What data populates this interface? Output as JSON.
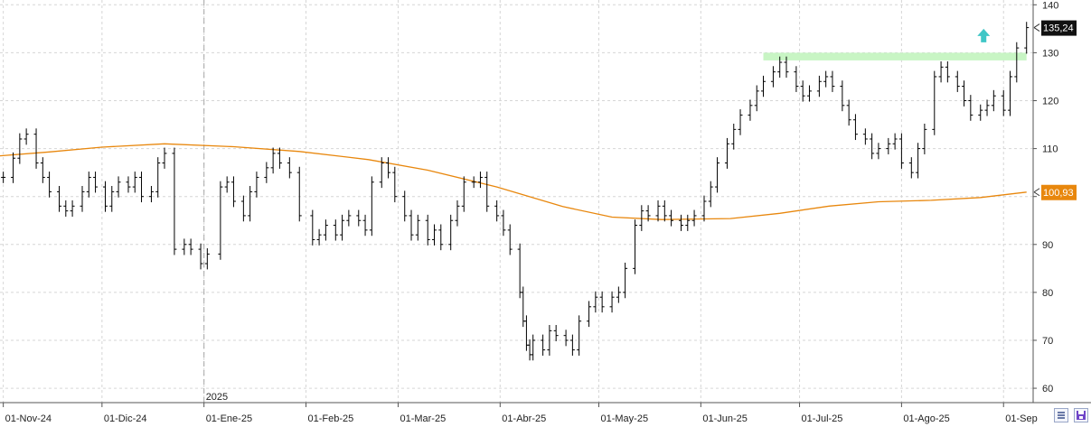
{
  "chart_data": {
    "type": "ohlc",
    "grid": true,
    "ylim": [
      57,
      141
    ],
    "y_ticks": [
      60,
      70,
      80,
      90,
      100,
      110,
      120,
      130,
      140
    ],
    "x_ticks": [
      {
        "date": "2024-11-01",
        "label": "01-Nov-24"
      },
      {
        "date": "2024-12-01",
        "label": "01-Dic-24"
      },
      {
        "date": "2025-01-01",
        "label": "01-Ene-25"
      },
      {
        "date": "2025-02-01",
        "label": "01-Feb-25"
      },
      {
        "date": "2025-03-01",
        "label": "01-Mar-25"
      },
      {
        "date": "2025-04-01",
        "label": "01-Abr-25"
      },
      {
        "date": "2025-05-01",
        "label": "01-May-25"
      },
      {
        "date": "2025-06-01",
        "label": "01-Jun-25"
      },
      {
        "date": "2025-07-01",
        "label": "01-Jul-25"
      },
      {
        "date": "2025-08-01",
        "label": "01-Ago-25"
      },
      {
        "date": "2025-09-01",
        "label": "01-Sep"
      }
    ],
    "year_marker": {
      "date": "2025-01-01",
      "label": "2025"
    },
    "price_series": {
      "color": "#000000",
      "points": [
        {
          "d": "2024-11-01",
          "v": 104
        },
        {
          "d": "2024-11-04",
          "v": 108
        },
        {
          "d": "2024-11-06",
          "v": 112
        },
        {
          "d": "2024-11-08",
          "v": 113
        },
        {
          "d": "2024-11-11",
          "v": 107
        },
        {
          "d": "2024-11-13",
          "v": 104
        },
        {
          "d": "2024-11-15",
          "v": 101
        },
        {
          "d": "2024-11-18",
          "v": 98
        },
        {
          "d": "2024-11-20",
          "v": 97
        },
        {
          "d": "2024-11-22",
          "v": 98
        },
        {
          "d": "2024-11-25",
          "v": 101
        },
        {
          "d": "2024-11-27",
          "v": 104
        },
        {
          "d": "2024-11-29",
          "v": 102
        },
        {
          "d": "2024-12-02",
          "v": 98
        },
        {
          "d": "2024-12-04",
          "v": 101
        },
        {
          "d": "2024-12-06",
          "v": 103
        },
        {
          "d": "2024-12-09",
          "v": 102
        },
        {
          "d": "2024-12-11",
          "v": 104
        },
        {
          "d": "2024-12-13",
          "v": 100
        },
        {
          "d": "2024-12-16",
          "v": 101
        },
        {
          "d": "2024-12-18",
          "v": 107
        },
        {
          "d": "2024-12-20",
          "v": 109
        },
        {
          "d": "2024-12-23",
          "v": 89
        },
        {
          "d": "2024-12-26",
          "v": 90
        },
        {
          "d": "2024-12-28",
          "v": 89
        },
        {
          "d": "2024-12-31",
          "v": 86
        },
        {
          "d": "2025-01-02",
          "v": 88
        },
        {
          "d": "2025-01-06",
          "v": 102
        },
        {
          "d": "2025-01-08",
          "v": 103
        },
        {
          "d": "2025-01-10",
          "v": 99
        },
        {
          "d": "2025-01-13",
          "v": 96
        },
        {
          "d": "2025-01-15",
          "v": 101
        },
        {
          "d": "2025-01-17",
          "v": 104
        },
        {
          "d": "2025-01-20",
          "v": 106
        },
        {
          "d": "2025-01-22",
          "v": 109
        },
        {
          "d": "2025-01-24",
          "v": 107
        },
        {
          "d": "2025-01-27",
          "v": 105
        },
        {
          "d": "2025-01-30",
          "v": 96
        },
        {
          "d": "2025-02-03",
          "v": 91
        },
        {
          "d": "2025-02-05",
          "v": 92
        },
        {
          "d": "2025-02-07",
          "v": 94
        },
        {
          "d": "2025-02-10",
          "v": 92
        },
        {
          "d": "2025-02-12",
          "v": 95
        },
        {
          "d": "2025-02-14",
          "v": 96
        },
        {
          "d": "2025-02-17",
          "v": 95
        },
        {
          "d": "2025-02-19",
          "v": 93
        },
        {
          "d": "2025-02-21",
          "v": 103
        },
        {
          "d": "2025-02-24",
          "v": 107
        },
        {
          "d": "2025-02-26",
          "v": 105
        },
        {
          "d": "2025-02-28",
          "v": 100
        },
        {
          "d": "2025-03-03",
          "v": 96
        },
        {
          "d": "2025-03-05",
          "v": 92
        },
        {
          "d": "2025-03-07",
          "v": 95
        },
        {
          "d": "2025-03-10",
          "v": 91
        },
        {
          "d": "2025-03-12",
          "v": 93
        },
        {
          "d": "2025-03-14",
          "v": 90
        },
        {
          "d": "2025-03-17",
          "v": 95
        },
        {
          "d": "2025-03-19",
          "v": 98
        },
        {
          "d": "2025-03-21",
          "v": 103
        },
        {
          "d": "2025-03-24",
          "v": 103
        },
        {
          "d": "2025-03-26",
          "v": 104
        },
        {
          "d": "2025-03-28",
          "v": 98
        },
        {
          "d": "2025-03-31",
          "v": 96
        },
        {
          "d": "2025-04-02",
          "v": 93
        },
        {
          "d": "2025-04-04",
          "v": 89
        },
        {
          "d": "2025-04-07",
          "v": 80
        },
        {
          "d": "2025-04-08",
          "v": 74
        },
        {
          "d": "2025-04-09",
          "v": 69
        },
        {
          "d": "2025-04-10",
          "v": 67
        },
        {
          "d": "2025-04-11",
          "v": 70
        },
        {
          "d": "2025-04-14",
          "v": 68
        },
        {
          "d": "2025-04-16",
          "v": 72
        },
        {
          "d": "2025-04-18",
          "v": 71
        },
        {
          "d": "2025-04-21",
          "v": 70
        },
        {
          "d": "2025-04-23",
          "v": 68
        },
        {
          "d": "2025-04-25",
          "v": 74
        },
        {
          "d": "2025-04-28",
          "v": 77
        },
        {
          "d": "2025-04-30",
          "v": 79
        },
        {
          "d": "2025-05-02",
          "v": 77
        },
        {
          "d": "2025-05-05",
          "v": 79
        },
        {
          "d": "2025-05-07",
          "v": 80
        },
        {
          "d": "2025-05-09",
          "v": 85
        },
        {
          "d": "2025-05-12",
          "v": 94
        },
        {
          "d": "2025-05-14",
          "v": 97
        },
        {
          "d": "2025-05-16",
          "v": 96
        },
        {
          "d": "2025-05-19",
          "v": 98
        },
        {
          "d": "2025-05-21",
          "v": 96
        },
        {
          "d": "2025-05-23",
          "v": 95
        },
        {
          "d": "2025-05-26",
          "v": 94
        },
        {
          "d": "2025-05-28",
          "v": 95
        },
        {
          "d": "2025-05-30",
          "v": 96
        },
        {
          "d": "2025-06-02",
          "v": 99
        },
        {
          "d": "2025-06-04",
          "v": 102
        },
        {
          "d": "2025-06-06",
          "v": 107
        },
        {
          "d": "2025-06-09",
          "v": 111
        },
        {
          "d": "2025-06-11",
          "v": 114
        },
        {
          "d": "2025-06-13",
          "v": 117
        },
        {
          "d": "2025-06-16",
          "v": 119
        },
        {
          "d": "2025-06-18",
          "v": 122
        },
        {
          "d": "2025-06-20",
          "v": 124
        },
        {
          "d": "2025-06-23",
          "v": 126
        },
        {
          "d": "2025-06-25",
          "v": 128
        },
        {
          "d": "2025-06-27",
          "v": 126
        },
        {
          "d": "2025-06-30",
          "v": 123
        },
        {
          "d": "2025-07-02",
          "v": 121
        },
        {
          "d": "2025-07-04",
          "v": 122
        },
        {
          "d": "2025-07-07",
          "v": 124
        },
        {
          "d": "2025-07-09",
          "v": 125
        },
        {
          "d": "2025-07-11",
          "v": 123
        },
        {
          "d": "2025-07-14",
          "v": 119
        },
        {
          "d": "2025-07-16",
          "v": 116
        },
        {
          "d": "2025-07-18",
          "v": 113
        },
        {
          "d": "2025-07-21",
          "v": 112
        },
        {
          "d": "2025-07-23",
          "v": 109
        },
        {
          "d": "2025-07-25",
          "v": 110
        },
        {
          "d": "2025-07-28",
          "v": 111
        },
        {
          "d": "2025-07-30",
          "v": 112
        },
        {
          "d": "2025-08-01",
          "v": 107
        },
        {
          "d": "2025-08-04",
          "v": 105
        },
        {
          "d": "2025-08-06",
          "v": 110
        },
        {
          "d": "2025-08-08",
          "v": 114
        },
        {
          "d": "2025-08-11",
          "v": 125
        },
        {
          "d": "2025-08-13",
          "v": 127
        },
        {
          "d": "2025-08-15",
          "v": 125
        },
        {
          "d": "2025-08-18",
          "v": 123
        },
        {
          "d": "2025-08-20",
          "v": 120
        },
        {
          "d": "2025-08-22",
          "v": 117
        },
        {
          "d": "2025-08-25",
          "v": 118
        },
        {
          "d": "2025-08-27",
          "v": 119
        },
        {
          "d": "2025-08-29",
          "v": 121
        },
        {
          "d": "2025-09-01",
          "v": 118
        },
        {
          "d": "2025-09-03",
          "v": 125
        },
        {
          "d": "2025-09-05",
          "v": 131
        },
        {
          "d": "2025-09-08",
          "v": 135.24
        }
      ]
    },
    "moving_average": {
      "color": "#e8870d",
      "points": [
        {
          "d": "2024-10-31",
          "v": 108.5
        },
        {
          "d": "2024-11-15",
          "v": 109.3
        },
        {
          "d": "2024-12-01",
          "v": 110.3
        },
        {
          "d": "2024-12-20",
          "v": 111.0
        },
        {
          "d": "2025-01-10",
          "v": 110.4
        },
        {
          "d": "2025-01-30",
          "v": 109.4
        },
        {
          "d": "2025-02-20",
          "v": 107.7
        },
        {
          "d": "2025-03-10",
          "v": 105.5
        },
        {
          "d": "2025-03-31",
          "v": 102.0
        },
        {
          "d": "2025-04-20",
          "v": 97.9
        },
        {
          "d": "2025-05-05",
          "v": 95.7
        },
        {
          "d": "2025-05-20",
          "v": 95.2
        },
        {
          "d": "2025-06-10",
          "v": 95.4
        },
        {
          "d": "2025-06-25",
          "v": 96.5
        },
        {
          "d": "2025-07-10",
          "v": 98.0
        },
        {
          "d": "2025-07-25",
          "v": 98.9
        },
        {
          "d": "2025-08-10",
          "v": 99.2
        },
        {
          "d": "2025-08-25",
          "v": 99.8
        },
        {
          "d": "2025-09-08",
          "v": 100.93
        }
      ]
    },
    "resistance_zone": {
      "from": "2025-06-20",
      "to": "2025-09-08",
      "low": 128.4,
      "high": 130.0,
      "color": "#c8f5c4"
    },
    "signal_arrow": {
      "date": "2025-09-01",
      "value": 133.5,
      "direction": "up",
      "color": "#3fc6c6"
    },
    "last_price": {
      "label": "135,24",
      "value": 135.24,
      "bg": "#111111",
      "fg": "#ffffff"
    },
    "ma_label": {
      "label": "100,93",
      "value": 100.93,
      "bg": "#e8870d",
      "fg": "#ffffff"
    }
  }
}
